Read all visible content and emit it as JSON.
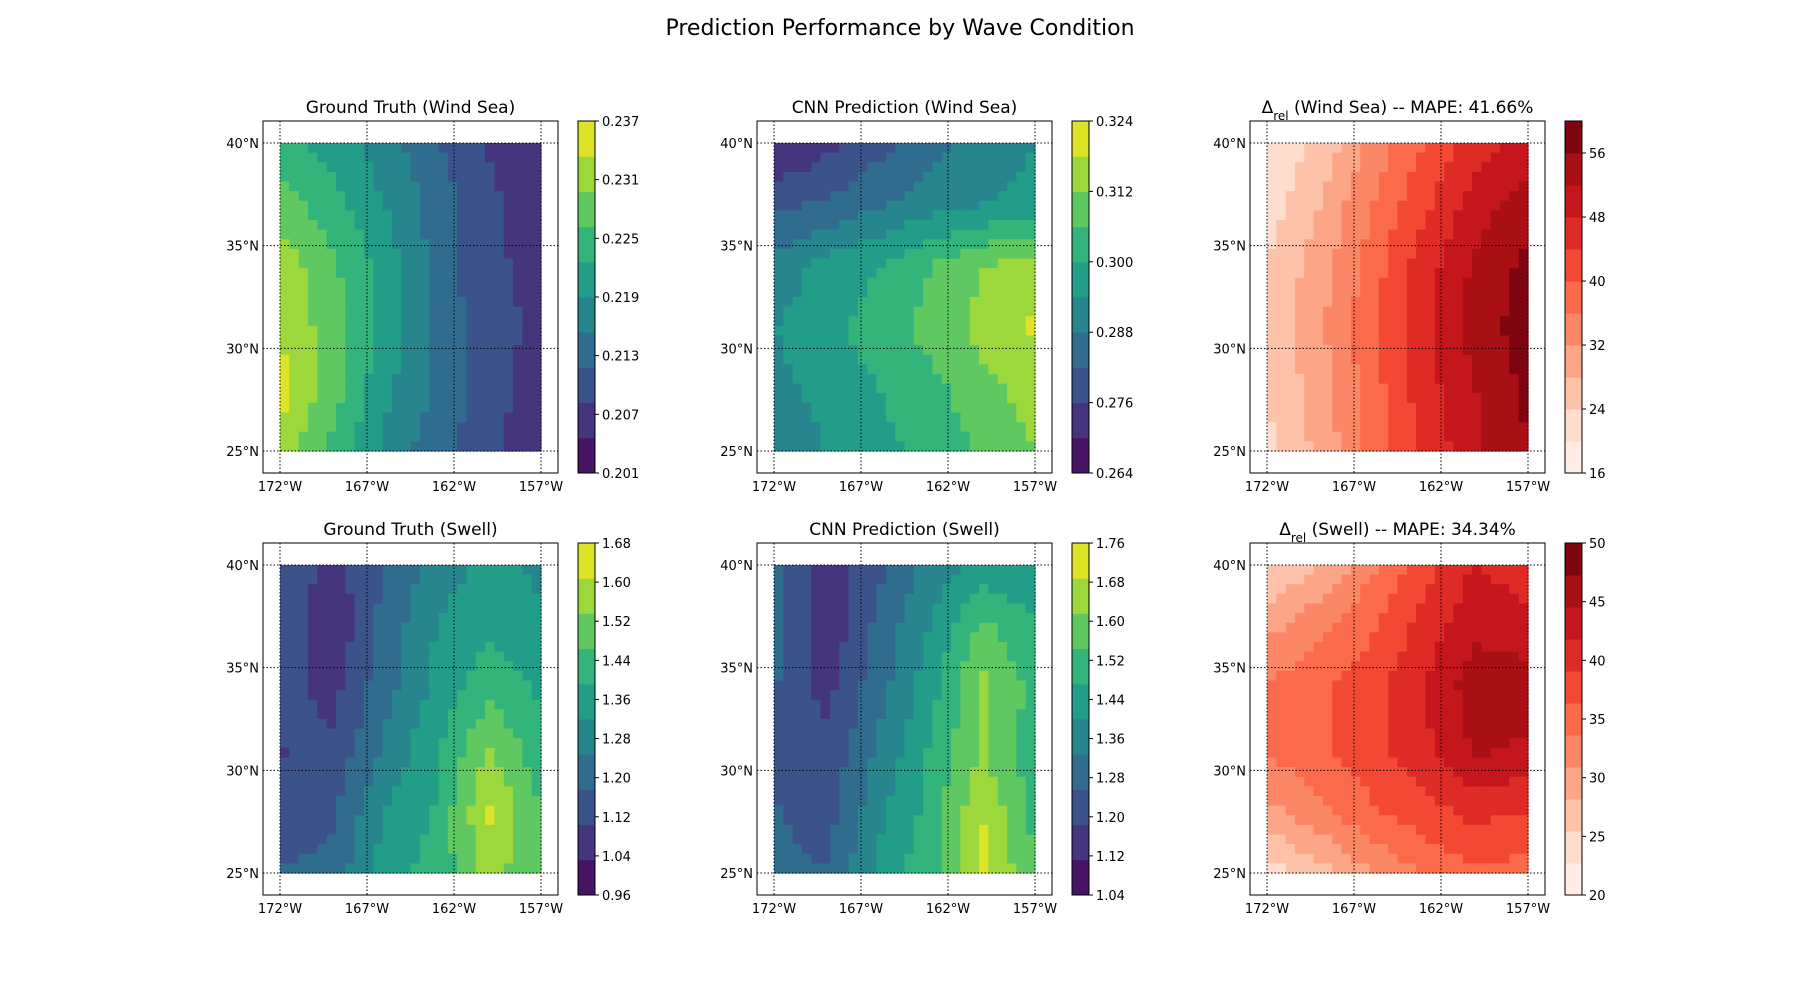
{
  "figure": {
    "title": "Prediction Performance by Wave Condition"
  },
  "chart_data": [
    {
      "type": "heatmap",
      "title": "Ground Truth (Wind Sea)",
      "title_sub": "",
      "title_suffix": "",
      "cmap": "viridis",
      "x_ticks": [
        "172°W",
        "167°W",
        "162°W",
        "157°W"
      ],
      "y_ticks": [
        "25°N",
        "30°N",
        "35°N",
        "40°N"
      ],
      "lon_range": [
        -172,
        -157
      ],
      "lat_range": [
        25,
        40
      ],
      "colorbar_ticks": [
        "0.201",
        "0.207",
        "0.213",
        "0.219",
        "0.225",
        "0.231",
        "0.237"
      ],
      "levels": [
        0.201,
        0.237
      ],
      "field": [
        [
          0.224,
          0.221,
          0.217,
          0.212,
          0.208,
          0.206
        ],
        [
          0.228,
          0.224,
          0.219,
          0.214,
          0.209,
          0.206
        ],
        [
          0.232,
          0.227,
          0.221,
          0.214,
          0.209,
          0.207
        ],
        [
          0.233,
          0.228,
          0.221,
          0.214,
          0.21,
          0.207
        ],
        [
          0.235,
          0.228,
          0.22,
          0.215,
          0.21,
          0.206
        ],
        [
          0.232,
          0.225,
          0.218,
          0.213,
          0.209,
          0.205
        ]
      ]
    },
    {
      "type": "heatmap",
      "title": "CNN Prediction (Wind Sea)",
      "title_sub": "",
      "title_suffix": "",
      "cmap": "viridis",
      "x_ticks": [
        "172°W",
        "167°W",
        "162°W",
        "157°W"
      ],
      "y_ticks": [
        "25°N",
        "30°N",
        "35°N",
        "40°N"
      ],
      "lon_range": [
        -172,
        -157
      ],
      "lat_range": [
        25,
        40
      ],
      "colorbar_ticks": [
        "0.264",
        "0.276",
        "0.288",
        "0.300",
        "0.312",
        "0.324"
      ],
      "levels": [
        0.264,
        0.324
      ],
      "field": [
        [
          0.269,
          0.274,
          0.28,
          0.286,
          0.29,
          0.294
        ],
        [
          0.28,
          0.283,
          0.287,
          0.291,
          0.294,
          0.296
        ],
        [
          0.29,
          0.296,
          0.3,
          0.306,
          0.312,
          0.316
        ],
        [
          0.294,
          0.298,
          0.303,
          0.308,
          0.314,
          0.319
        ],
        [
          0.292,
          0.296,
          0.3,
          0.304,
          0.31,
          0.315
        ],
        [
          0.29,
          0.294,
          0.298,
          0.302,
          0.307,
          0.312
        ]
      ]
    },
    {
      "type": "heatmap",
      "title": "Δ",
      "title_sub": "rel",
      "title_suffix": " (Wind Sea) -- MAPE: 41.66%",
      "cmap": "reds",
      "x_ticks": [
        "172°W",
        "167°W",
        "162°W",
        "157°W"
      ],
      "y_ticks": [
        "25°N",
        "30°N",
        "35°N",
        "40°N"
      ],
      "lon_range": [
        -172,
        -157
      ],
      "lat_range": [
        25,
        40
      ],
      "colorbar_ticks": [
        "16",
        "24",
        "32",
        "40",
        "48",
        "56"
      ],
      "levels": [
        16,
        60
      ],
      "field": [
        [
          20,
          25,
          33,
          40,
          46,
          50
        ],
        [
          22,
          28,
          36,
          43,
          50,
          54
        ],
        [
          24,
          30,
          38,
          46,
          53,
          57
        ],
        [
          25,
          31,
          39,
          47,
          54,
          58
        ],
        [
          24,
          30,
          38,
          46,
          52,
          57
        ],
        [
          23,
          29,
          37,
          45,
          51,
          56
        ]
      ]
    },
    {
      "type": "heatmap",
      "title": "Ground Truth (Swell)",
      "title_sub": "",
      "title_suffix": "",
      "cmap": "viridis",
      "x_ticks": [
        "172°W",
        "167°W",
        "162°W",
        "157°W"
      ],
      "y_ticks": [
        "25°N",
        "30°N",
        "35°N",
        "40°N"
      ],
      "lon_range": [
        -172,
        -157
      ],
      "lat_range": [
        25,
        40
      ],
      "colorbar_ticks": [
        "0.96",
        "1.04",
        "1.12",
        "1.20",
        "1.28",
        "1.36",
        "1.44",
        "1.52",
        "1.60",
        "1.68"
      ],
      "levels": [
        0.96,
        1.68
      ],
      "field": [
        [
          1.16,
          1.08,
          1.18,
          1.28,
          1.34,
          1.3
        ],
        [
          1.18,
          1.04,
          1.2,
          1.32,
          1.38,
          1.34
        ],
        [
          1.14,
          1.08,
          1.22,
          1.34,
          1.44,
          1.38
        ],
        [
          1.1,
          1.12,
          1.26,
          1.38,
          1.54,
          1.42
        ],
        [
          1.12,
          1.16,
          1.32,
          1.4,
          1.62,
          1.46
        ],
        [
          1.18,
          1.2,
          1.36,
          1.42,
          1.56,
          1.48
        ]
      ]
    },
    {
      "type": "heatmap",
      "title": "CNN Prediction (Swell)",
      "title_sub": "",
      "title_suffix": "",
      "cmap": "viridis",
      "x_ticks": [
        "172°W",
        "167°W",
        "162°W",
        "157°W"
      ],
      "y_ticks": [
        "25°N",
        "30°N",
        "35°N",
        "40°N"
      ],
      "lon_range": [
        -172,
        -157
      ],
      "lat_range": [
        25,
        40
      ],
      "colorbar_ticks": [
        "1.04",
        "1.12",
        "1.20",
        "1.28",
        "1.36",
        "1.44",
        "1.52",
        "1.60",
        "1.68",
        "1.76"
      ],
      "levels": [
        1.04,
        1.76
      ],
      "field": [
        [
          1.28,
          1.14,
          1.24,
          1.36,
          1.42,
          1.4
        ],
        [
          1.3,
          1.12,
          1.28,
          1.4,
          1.56,
          1.48
        ],
        [
          1.26,
          1.16,
          1.3,
          1.44,
          1.64,
          1.52
        ],
        [
          1.24,
          1.2,
          1.34,
          1.48,
          1.62,
          1.5
        ],
        [
          1.26,
          1.22,
          1.38,
          1.5,
          1.68,
          1.52
        ],
        [
          1.28,
          1.26,
          1.42,
          1.52,
          1.72,
          1.54
        ]
      ]
    },
    {
      "type": "heatmap",
      "title": "Δ",
      "title_sub": "rel",
      "title_suffix": " (Swell) -- MAPE: 34.34%",
      "cmap": "reds",
      "x_ticks": [
        "172°W",
        "167°W",
        "162°W",
        "157°W"
      ],
      "y_ticks": [
        "25°N",
        "30°N",
        "35°N",
        "40°N"
      ],
      "lon_range": [
        -172,
        -157
      ],
      "lat_range": [
        25,
        40
      ],
      "colorbar_ticks": [
        "20",
        "25",
        "30",
        "35",
        "40",
        "45",
        "50"
      ],
      "levels": [
        20,
        50
      ],
      "field": [
        [
          25,
          28,
          33,
          38,
          42,
          40
        ],
        [
          30,
          33,
          36,
          40,
          44,
          43
        ],
        [
          34,
          36,
          38,
          42,
          46,
          46
        ],
        [
          34,
          36,
          38,
          41,
          45,
          44
        ],
        [
          30,
          33,
          36,
          38,
          40,
          39
        ],
        [
          24,
          27,
          31,
          34,
          36,
          35
        ]
      ]
    }
  ]
}
